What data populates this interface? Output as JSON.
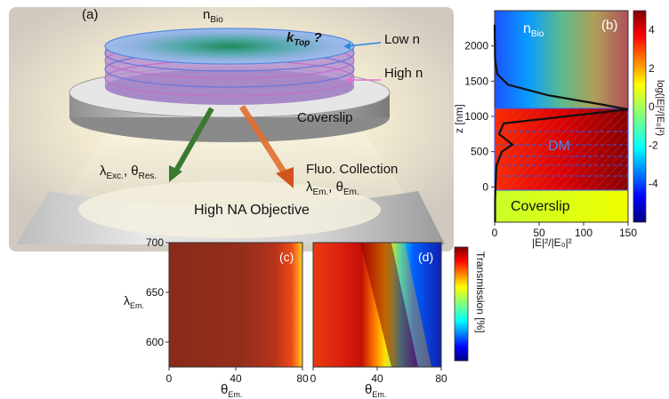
{
  "panel_a": {
    "label": "(a)",
    "n_bio": "n",
    "n_bio_sub": "Bio",
    "ktop": "k",
    "ktop_sub": "Top",
    "ktop_q": "?",
    "low_n": "Low n",
    "high_n": "High n",
    "coverslip": "Coverslip",
    "exc_l": "λ",
    "exc_l_sub": "Exc.",
    "exc_sep": ", θ",
    "exc_t_sub": "Res.",
    "fluo": "Fluo. Collection",
    "em_l": "λ",
    "em_l_sub": "Em.",
    "em_sep": ", θ",
    "em_t_sub": "Em.",
    "objective": "High NA Objective"
  },
  "panel_b": {
    "label": "(b)",
    "n_bio": "n",
    "n_bio_sub": "Bio",
    "dm": "DM",
    "coverslip": "Coverslip",
    "y_label": "z [nm]",
    "x_label": "|E|²/|E₀|²",
    "y_ticks": [
      "2000",
      "1500",
      "1000",
      "500",
      "0"
    ],
    "x_ticks": [
      "0",
      "50",
      "100",
      "150"
    ],
    "colorbar_label": "log(|E|²/|E₀|²)",
    "colorbar_ticks": [
      "4",
      "2",
      "0",
      "-2",
      "-4"
    ]
  },
  "panel_c": {
    "label": "(c)",
    "y_label": "λ",
    "y_label_sub": "Em.",
    "x_label": "θ",
    "x_label_sub": "Em.",
    "y_ticks": [
      "700",
      "650",
      "600"
    ],
    "x_ticks": [
      "0",
      "40",
      "80"
    ]
  },
  "panel_d": {
    "label": "(d)",
    "x_label": "θ",
    "x_label_sub": "Em.",
    "x_ticks": [
      "0",
      "40",
      "80"
    ],
    "colorbar_label": "Transmission [%]"
  },
  "chart_data": [
    {
      "type": "line",
      "panel": "(b)",
      "xlabel": "|E|²/|E₀|²",
      "ylabel": "z [nm]",
      "xlim": [
        0,
        150
      ],
      "ylim": [
        -500,
        2500
      ],
      "series": [
        {
          "x": [
            0,
            0.5,
            3,
            15,
            60,
            120,
            150,
            80,
            10,
            5,
            20,
            8,
            2,
            1,
            0.5,
            0.5
          ],
          "y": [
            2300,
            1800,
            1600,
            1450,
            1300,
            1170,
            1100,
            1000,
            900,
            750,
            600,
            500,
            300,
            0,
            -200,
            -500
          ]
        }
      ]
    },
    {
      "type": "heatmap",
      "panel": "(c)",
      "xlabel": "θEm.",
      "ylabel": "λEm.",
      "xlim": [
        0,
        80
      ],
      "ylim": [
        575,
        700
      ]
    },
    {
      "type": "heatmap",
      "panel": "(d)",
      "xlabel": "θEm.",
      "xlim": [
        0,
        80
      ],
      "ylim": [
        575,
        700
      ]
    }
  ]
}
